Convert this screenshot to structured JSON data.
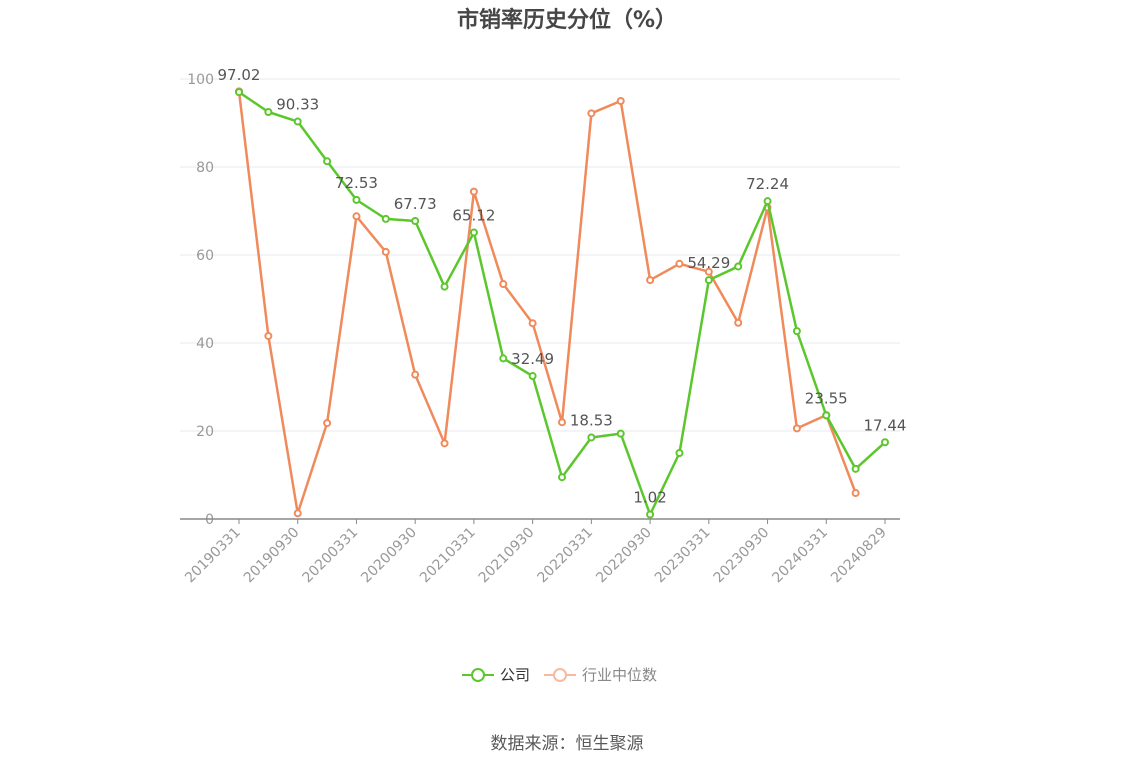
{
  "title": "市销率历史分位（%）",
  "source": "数据来源：恒生聚源",
  "colors": {
    "company": "#5cc72d",
    "industry": "#f08a5b",
    "industry_legend": "#f7b9a0",
    "axis": "#888888",
    "grid": "#e6e8ef",
    "label": "#555555"
  },
  "chart_data": {
    "type": "line",
    "title": "市销率历史分位（%）",
    "ylim": [
      0,
      100
    ],
    "y_ticks": [
      0,
      20,
      40,
      60,
      80,
      100
    ],
    "x_tick_labels": [
      "20190331",
      "20190930",
      "20200331",
      "20200930",
      "20210331",
      "20210930",
      "20220331",
      "20220930",
      "20230331",
      "20230930",
      "20240331",
      "20240829"
    ],
    "x": [
      "20190331",
      "20190630",
      "20190930",
      "20191231",
      "20200331",
      "20200630",
      "20200930",
      "20201231",
      "20210331",
      "20210630",
      "20210930",
      "20211231",
      "20220331",
      "20220630",
      "20220930",
      "20221231",
      "20230331",
      "20230630",
      "20230930",
      "20231231",
      "20240331",
      "20240630",
      "20240829"
    ],
    "grid": true,
    "legend_position": "bottom-center",
    "series": [
      {
        "name": "公司",
        "values": [
          97.02,
          92.5,
          90.33,
          81.3,
          72.53,
          68.2,
          67.73,
          52.8,
          65.12,
          36.5,
          32.49,
          9.5,
          18.53,
          19.4,
          1.02,
          15.0,
          54.29,
          57.4,
          72.24,
          42.7,
          23.55,
          11.4,
          17.44
        ],
        "labels": [
          "97.02",
          "",
          "90.33",
          "",
          "72.53",
          "",
          "67.73",
          "",
          "65.12",
          "",
          "32.49",
          "",
          "18.53",
          "",
          "1.02",
          "",
          "54.29",
          "",
          "72.24",
          "",
          "23.55",
          "",
          "17.44"
        ]
      },
      {
        "name": "行业中位数",
        "values": [
          97.2,
          41.6,
          1.3,
          21.8,
          68.8,
          60.7,
          32.8,
          17.2,
          74.4,
          53.4,
          44.5,
          22.0,
          92.2,
          95.0,
          54.3,
          58.0,
          56.2,
          44.6,
          70.8,
          20.6,
          23.6,
          5.9,
          null
        ]
      }
    ]
  }
}
